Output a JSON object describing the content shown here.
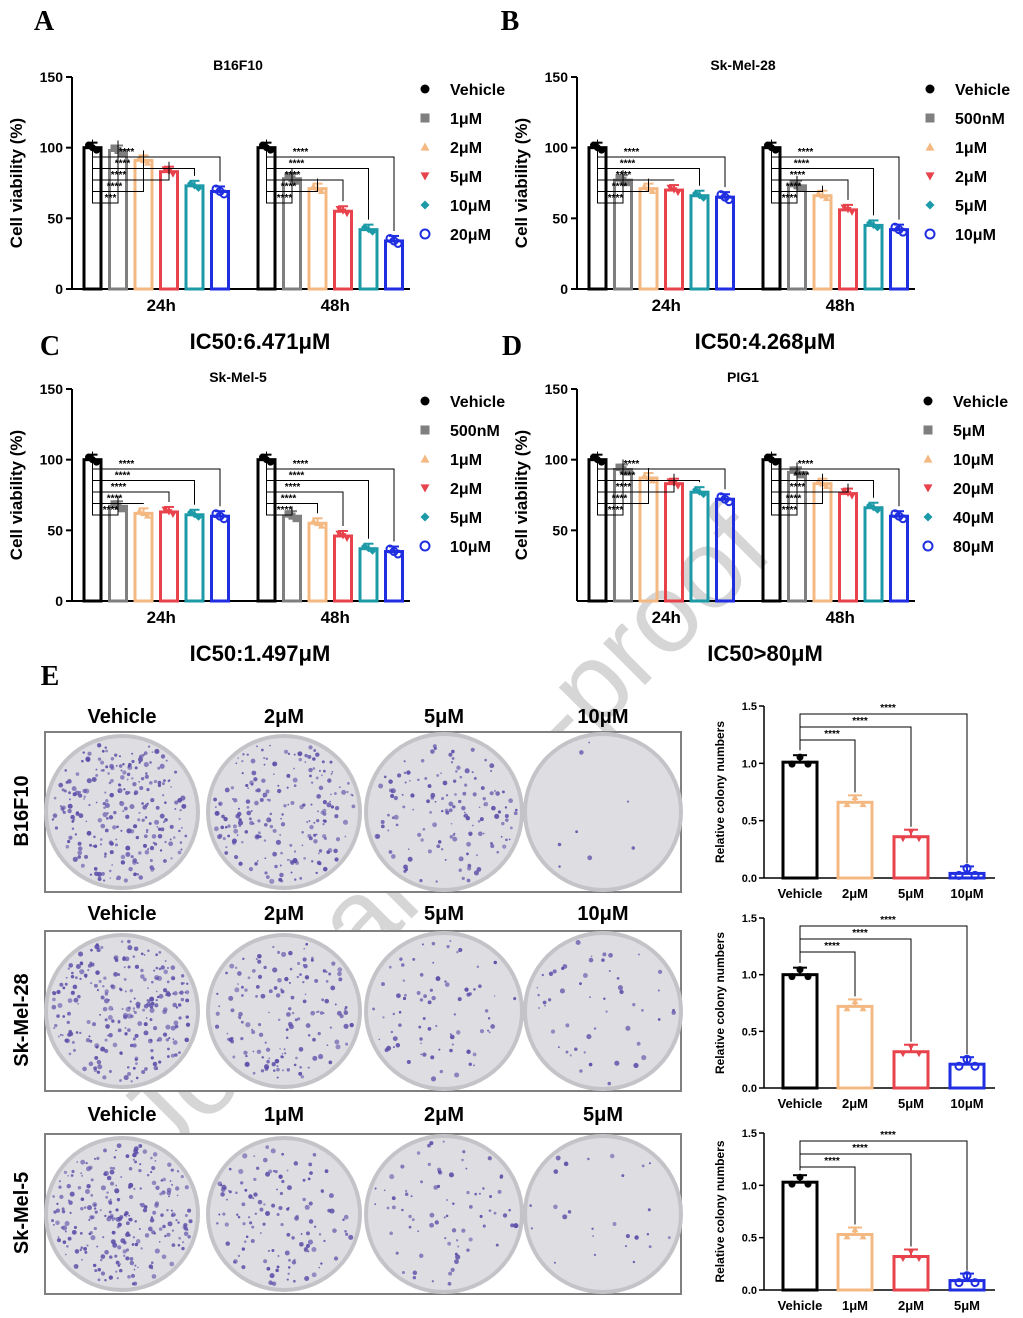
{
  "watermark": "Journal Pre-proof",
  "panel_letters": [
    "A",
    "B",
    "C",
    "D",
    "E"
  ],
  "viability_ylabel": "Cell viability (%)",
  "colony_ylabel": "Relative colony  numbers",
  "significance": "****",
  "colors": {
    "vehicle": "#000000",
    "gray": "#7f7f7f",
    "orange": "#f4b983",
    "red": "#e8434c",
    "teal": "#1d9aa8",
    "blue": "#1f2ee0",
    "plate_stain": "#5a4da8"
  },
  "chart_data": [
    {
      "type": "bar",
      "panel": "A",
      "title": "B16F10",
      "categories": [
        "24h",
        "48h"
      ],
      "ylabel": "Cell viability (%)",
      "ylim": [
        0,
        150
      ],
      "yticks": [
        0,
        50,
        100,
        150
      ],
      "legend": "right",
      "series": [
        {
          "name": "Vehicle",
          "values": [
            100,
            100
          ]
        },
        {
          "name": "1μM",
          "values": [
            98,
            78
          ]
        },
        {
          "name": "2μM",
          "values": [
            91,
            71
          ]
        },
        {
          "name": "5μM",
          "values": [
            83,
            55
          ]
        },
        {
          "name": "10μM",
          "values": [
            73,
            42
          ]
        },
        {
          "name": "20μM",
          "values": [
            69,
            34
          ]
        }
      ],
      "significance": [
        [
          "***",
          "****",
          "****",
          "****",
          "****"
        ],
        [
          "****",
          "****",
          "****",
          "****",
          "****"
        ]
      ],
      "annotation": "IC50:6.471μM"
    },
    {
      "type": "bar",
      "panel": "B",
      "title": "Sk-Mel-28",
      "categories": [
        "24h",
        "48h"
      ],
      "ylabel": "Cell viability (%)",
      "ylim": [
        0,
        150
      ],
      "yticks": [
        0,
        50,
        100,
        150
      ],
      "legend": "right",
      "series": [
        {
          "name": "Vehicle",
          "values": [
            100,
            100
          ]
        },
        {
          "name": "500nM",
          "values": [
            77,
            73
          ]
        },
        {
          "name": "1μM",
          "values": [
            71,
            66
          ]
        },
        {
          "name": "2μM",
          "values": [
            70,
            56
          ]
        },
        {
          "name": "5μM",
          "values": [
            66,
            45
          ]
        },
        {
          "name": "10μM",
          "values": [
            65,
            42
          ]
        }
      ],
      "significance": [
        [
          "****",
          "****",
          "****",
          "****",
          "****"
        ],
        [
          "****",
          "****",
          "****",
          "****",
          "****"
        ]
      ],
      "annotation": "IC50:4.268μM"
    },
    {
      "type": "bar",
      "panel": "C",
      "title": "Sk-Mel-5",
      "categories": [
        "24h",
        "48h"
      ],
      "ylabel": "Cell viability (%)",
      "ylim": [
        0,
        150
      ],
      "yticks": [
        0,
        50,
        100,
        150
      ],
      "legend": "right",
      "series": [
        {
          "name": "Vehicle",
          "values": [
            100,
            100
          ]
        },
        {
          "name": "500nM",
          "values": [
            67,
            60
          ]
        },
        {
          "name": "1μM",
          "values": [
            62,
            55
          ]
        },
        {
          "name": "2μM",
          "values": [
            63,
            46
          ]
        },
        {
          "name": "5μM",
          "values": [
            61,
            37
          ]
        },
        {
          "name": "10μM",
          "values": [
            60,
            35
          ]
        }
      ],
      "significance": [
        [
          "****",
          "****",
          "****",
          "****",
          "****"
        ],
        [
          "****",
          "****",
          "****",
          "****",
          "****"
        ]
      ],
      "annotation": "IC50:1.497μM"
    },
    {
      "type": "bar",
      "panel": "D",
      "title": "PIG1",
      "categories": [
        "24h",
        "48h"
      ],
      "ylabel": "Cell viability (%)",
      "ylim": [
        0,
        150
      ],
      "yticks": [
        50,
        100,
        150
      ],
      "legend": "right",
      "series": [
        {
          "name": "Vehicle",
          "values": [
            100,
            100
          ]
        },
        {
          "name": "5μM",
          "values": [
            93,
            91
          ]
        },
        {
          "name": "10μM",
          "values": [
            87,
            83
          ]
        },
        {
          "name": "20μM",
          "values": [
            83,
            76
          ]
        },
        {
          "name": "40μM",
          "values": [
            77,
            66
          ]
        },
        {
          "name": "80μM",
          "values": [
            72,
            60
          ]
        }
      ],
      "significance": [
        [
          "****",
          "****",
          "****",
          "****",
          "****"
        ],
        [
          "****",
          "****",
          "****",
          "****",
          "****"
        ]
      ],
      "annotation": "IC50>80μM"
    },
    {
      "type": "bar",
      "panel": "E",
      "cell_line": "B16F10",
      "categories": [
        "Vehicle",
        "2μM",
        "5μM",
        "10μM"
      ],
      "values": [
        1.01,
        0.66,
        0.36,
        0.04
      ],
      "ylabel": "Relative colony  numbers",
      "ylim": [
        0,
        1.5
      ],
      "yticks": [
        "0.0",
        "0.5",
        "1.0",
        "1.5"
      ],
      "significance": [
        "****",
        "****",
        "****"
      ]
    },
    {
      "type": "bar",
      "panel": "E",
      "cell_line": "Sk-Mel-28",
      "categories": [
        "Vehicle",
        "2μM",
        "5μM",
        "10μM"
      ],
      "values": [
        1.0,
        0.72,
        0.32,
        0.21
      ],
      "ylabel": "Relative colony  numbers",
      "ylim": [
        0,
        1.5
      ],
      "yticks": [
        "0.0",
        "0.5",
        "1.0",
        "1.5"
      ],
      "significance": [
        "****",
        "****",
        "****"
      ]
    },
    {
      "type": "bar",
      "panel": "E",
      "cell_line": "Sk-Mel-5",
      "categories": [
        "Vehicle",
        "1μM",
        "2μM",
        "5μM"
      ],
      "values": [
        1.03,
        0.53,
        0.32,
        0.09
      ],
      "ylabel": "Relative colony  numbers",
      "ylim": [
        0,
        1.5
      ],
      "yticks": [
        "0.0",
        "0.5",
        "1.0",
        "1.5"
      ],
      "significance": [
        "****",
        "****",
        "****"
      ]
    }
  ],
  "plates": [
    {
      "cell_line": "B16F10",
      "labels": [
        "Vehicle",
        "2μM",
        "5μM",
        "10μM"
      ],
      "density": [
        1.0,
        0.8,
        0.55,
        0.03
      ]
    },
    {
      "cell_line": "Sk-Mel-28",
      "labels": [
        "Vehicle",
        "2μM",
        "5μM",
        "10μM"
      ],
      "density": [
        1.0,
        0.6,
        0.3,
        0.2
      ]
    },
    {
      "cell_line": "Sk-Mel-5",
      "labels": [
        "Vehicle",
        "1μM",
        "2μM",
        "5μM"
      ],
      "density": [
        1.0,
        0.5,
        0.3,
        0.1
      ]
    }
  ]
}
